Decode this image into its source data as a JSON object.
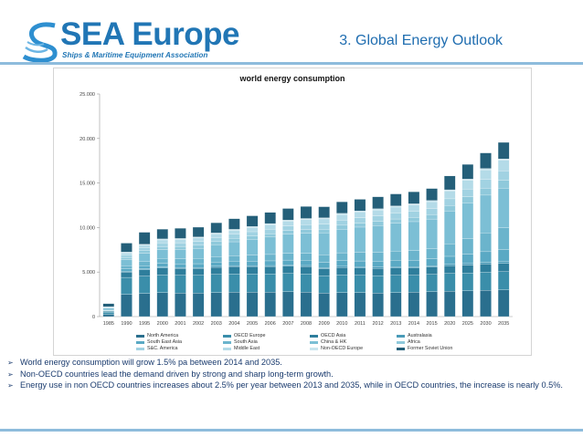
{
  "brand": {
    "name": "SEA Europe",
    "tagline": "Ships & Maritime Equipment Association"
  },
  "slide": {
    "title": "3. Global Energy Outlook"
  },
  "chart_data": {
    "type": "bar",
    "stacked": true,
    "title": "world energy consumption",
    "xlabel": "",
    "ylabel": "",
    "ylim": [
      0,
      25000
    ],
    "yticks": [
      0,
      5000,
      10000,
      15000,
      20000,
      25000
    ],
    "ytick_labels": [
      "0",
      "5.000",
      "10.000",
      "15.000",
      "20.000",
      "25.000"
    ],
    "grid": false,
    "legend_position": "bottom",
    "categories": [
      "1985",
      "1990",
      "1995",
      "2000",
      "2001",
      "2002",
      "2003",
      "2004",
      "2005",
      "2006",
      "2007",
      "2008",
      "2009",
      "2010",
      "2011",
      "2012",
      "2013",
      "2014",
      "2015",
      "2020",
      "2025",
      "2030",
      "2035"
    ],
    "series": [
      {
        "name": "North America",
        "color": "#2a6f8e",
        "values": [
          250,
          2500,
          2600,
          2700,
          2650,
          2650,
          2700,
          2750,
          2750,
          2750,
          2800,
          2750,
          2650,
          2700,
          2700,
          2650,
          2700,
          2750,
          2800,
          2850,
          2900,
          2950,
          3000
        ]
      },
      {
        "name": "OECD Europe",
        "color": "#3a8eaa",
        "values": [
          250,
          1900,
          1950,
          2000,
          2000,
          2000,
          2050,
          2050,
          2050,
          2050,
          2050,
          2050,
          1950,
          2000,
          1950,
          1950,
          1950,
          1900,
          1950,
          2000,
          2000,
          2050,
          2050
        ]
      },
      {
        "name": "OECD Asia",
        "color": "#2e7e9c",
        "values": [
          100,
          600,
          700,
          750,
          750,
          750,
          780,
          800,
          800,
          800,
          810,
          800,
          770,
          800,
          800,
          800,
          800,
          800,
          820,
          850,
          880,
          900,
          920
        ]
      },
      {
        "name": "Australasia",
        "color": "#4a9bb8",
        "values": [
          50,
          100,
          110,
          120,
          120,
          120,
          125,
          130,
          130,
          135,
          135,
          140,
          140,
          145,
          145,
          150,
          150,
          150,
          155,
          165,
          175,
          185,
          195
        ]
      },
      {
        "name": "South East Asia",
        "color": "#5aa9c4",
        "values": [
          50,
          250,
          350,
          400,
          400,
          420,
          450,
          480,
          500,
          520,
          550,
          570,
          580,
          620,
          650,
          680,
          710,
          740,
          770,
          900,
          1050,
          1200,
          1350
        ]
      },
      {
        "name": "South Asia",
        "color": "#6bb4cc",
        "values": [
          80,
          350,
          450,
          550,
          560,
          580,
          610,
          640,
          680,
          720,
          760,
          800,
          850,
          900,
          950,
          990,
          1030,
          1070,
          1110,
          1400,
          1750,
          2100,
          2450
        ]
      },
      {
        "name": "China & HK",
        "color": "#7cbfd5",
        "values": [
          150,
          700,
          950,
          1000,
          1050,
          1150,
          1350,
          1550,
          1750,
          1950,
          2150,
          2250,
          2450,
          2650,
          2850,
          3000,
          3150,
          3250,
          3350,
          3700,
          4000,
          4250,
          4450
        ]
      },
      {
        "name": "Africa",
        "color": "#8fc9db",
        "values": [
          50,
          250,
          280,
          320,
          330,
          340,
          350,
          370,
          380,
          390,
          400,
          420,
          430,
          440,
          450,
          460,
          470,
          490,
          510,
          600,
          700,
          800,
          900
        ]
      },
      {
        "name": "S&C. America",
        "color": "#a1d2e2",
        "values": [
          50,
          300,
          350,
          420,
          430,
          430,
          450,
          470,
          490,
          510,
          530,
          550,
          560,
          590,
          600,
          620,
          630,
          650,
          670,
          760,
          860,
          950,
          1050
        ]
      },
      {
        "name": "Middle East",
        "color": "#b4dbe8",
        "values": [
          50,
          200,
          280,
          350,
          370,
          390,
          410,
          440,
          470,
          500,
          530,
          560,
          590,
          620,
          650,
          680,
          710,
          740,
          770,
          880,
          990,
          1100,
          1200
        ]
      },
      {
        "name": "Non-OECD Europe",
        "color": "#c9e5ee",
        "values": [
          20,
          100,
          100,
          110,
          110,
          110,
          115,
          115,
          120,
          120,
          125,
          125,
          120,
          125,
          125,
          125,
          125,
          125,
          130,
          135,
          140,
          145,
          150
        ]
      },
      {
        "name": "Former Soviet Union",
        "color": "#245f79",
        "values": [
          350,
          1000,
          1350,
          1100,
          1150,
          1100,
          1150,
          1200,
          1200,
          1250,
          1300,
          1350,
          1250,
          1300,
          1300,
          1350,
          1350,
          1350,
          1350,
          1550,
          1650,
          1750,
          1850
        ]
      }
    ]
  },
  "bullets": [
    "World energy consumption will grow 1.5% pa between 2014 and 2035.",
    "Non-OECD countries lead the demand driven by strong and sharp long-term growth.",
    "Energy use in non OECD countries increases about 2.5% per year between 2013 and 2035, while in OECD countries, the increase is nearly 0.5%."
  ],
  "bullet_marker": "➢"
}
